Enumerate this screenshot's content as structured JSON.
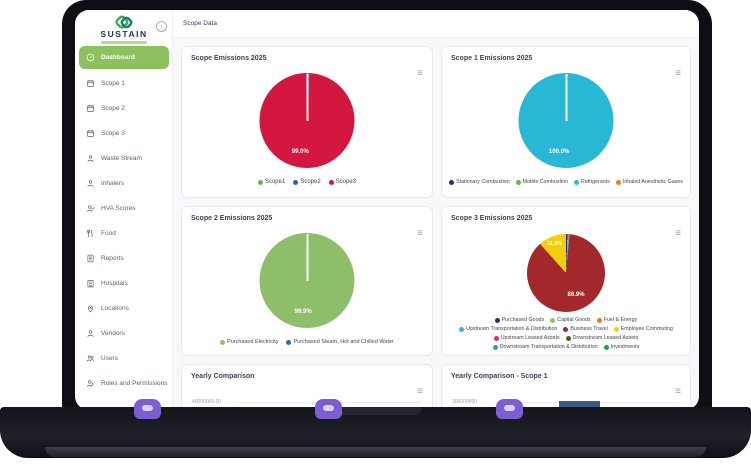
{
  "brand": {
    "name": "SUSTAIN"
  },
  "icons": {
    "card_menu": "≡",
    "collapse": "‹",
    "chevron": "›"
  },
  "window": {
    "header_title": "Scope Data"
  },
  "sidebar": {
    "items": [
      {
        "label": "Dashboard",
        "icon": "gauge-icon",
        "active": true
      },
      {
        "label": "Scope 1",
        "icon": "calendar-icon"
      },
      {
        "label": "Scope 2",
        "icon": "calendar-icon"
      },
      {
        "label": "Scope 3",
        "icon": "calendar-icon"
      },
      {
        "label": "Waste Stream",
        "icon": "person-icon"
      },
      {
        "label": "Inhalers",
        "icon": "person-icon"
      },
      {
        "label": "HVA Scores",
        "icon": "person-check-icon"
      },
      {
        "label": "Food",
        "icon": "utensils-icon"
      },
      {
        "label": "Reports",
        "icon": "report-icon"
      },
      {
        "label": "Hospitals",
        "icon": "building-icon"
      },
      {
        "label": "Locations",
        "icon": "pin-icon"
      },
      {
        "label": "Vendors",
        "icon": "person-icon"
      },
      {
        "label": "Users",
        "icon": "users-icon"
      },
      {
        "label": "Roles and Permissions",
        "icon": "person-arrow-icon",
        "chevron": true
      }
    ]
  },
  "cards": [
    {
      "title": "Scope Emissions 2025",
      "chart_data": {
        "type": "pie",
        "labels": [
          "Scope1",
          "Scope2",
          "Scope3"
        ],
        "values": [
          0.4,
          0.6,
          99.0
        ],
        "colors": [
          "#61b847",
          "#2c63c9",
          "#d4173f"
        ],
        "center_labels": [
          "99.0%"
        ]
      }
    },
    {
      "title": "Scope 1 Emissions 2025",
      "chart_data": {
        "type": "pie",
        "labels": [
          "Stationary Combustion",
          "Mobile Combustion",
          "Refrigerants",
          "Inhaled Anesthetic Gases"
        ],
        "values": [
          0,
          0,
          100,
          0
        ],
        "colors": [
          "#232f6e",
          "#61b847",
          "#29b7d6",
          "#ef7d1a"
        ],
        "center_labels": [
          "100.0%"
        ]
      }
    },
    {
      "title": "Scope 2 Emissions 2025",
      "chart_data": {
        "type": "pie",
        "labels": [
          "Purchased Electricity",
          "Purchased Steam, Hot and Chilled Water"
        ],
        "values": [
          99.9,
          0.1
        ],
        "colors": [
          "#8fbe6a",
          "#2c63c9"
        ],
        "center_labels": [
          "99.9%"
        ]
      }
    },
    {
      "title": "Scope 3 Emissions 2025",
      "chart_data": {
        "type": "pie",
        "labels": [
          "Purchased Goods",
          "Capital Goods",
          "Fuel & Energy",
          "Upstream Transportation & Distribution",
          "Business Travel",
          "Employee Commuting",
          "Upstream Leased Assets",
          "Downstream Leased Assets",
          "Downstream Transportation & Distribution",
          "Investments"
        ],
        "values": [
          0.6,
          0.3,
          0.3,
          0.3,
          86.9,
          11.6,
          0,
          0,
          0,
          0
        ],
        "colors": [
          "#232f6e",
          "#88c767",
          "#ef7d1a",
          "#2ab3ea",
          "#a3282b",
          "#f3cf0a",
          "#ec1f8f",
          "#4b5e20",
          "#1fa7a0",
          "#18a34e"
        ],
        "center_labels": [
          "86.9%",
          "11.6%"
        ]
      }
    },
    {
      "title": "Yearly Comparison",
      "chart_data": {
        "type": "bar",
        "ytick": "40000000.00"
      }
    },
    {
      "title": "Yearly Comparison - Scope 1",
      "chart_data": {
        "type": "bar",
        "ytick": "300000000",
        "bar_color": "#3a5a80"
      }
    }
  ]
}
